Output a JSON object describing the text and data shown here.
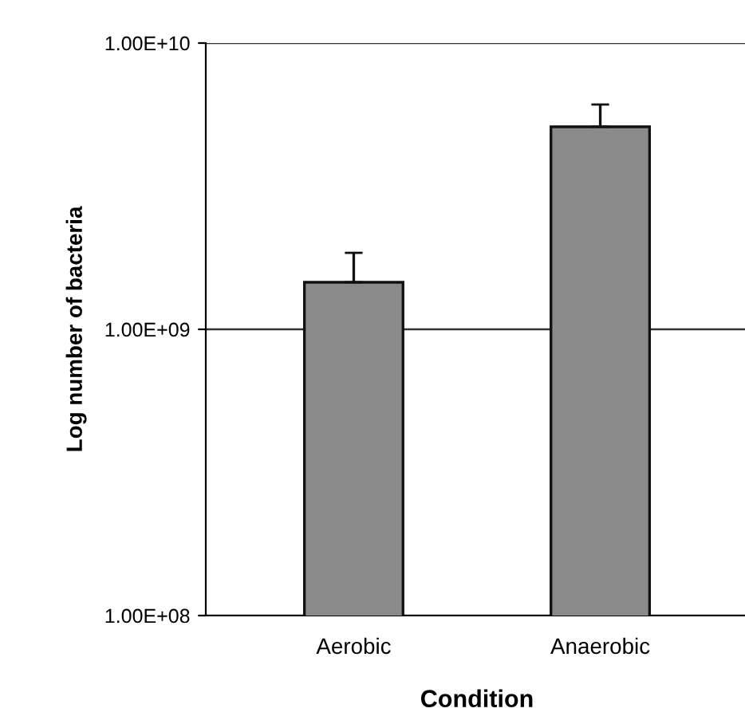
{
  "chart_data": {
    "type": "bar",
    "xlabel": "Condition",
    "ylabel": "Log number of bacteria",
    "categories": [
      "Aerobic",
      "Anaerobic"
    ],
    "values": [
      1460000000,
      5100000000
    ],
    "errors": [
      [
        1460000000,
        1850000000
      ],
      [
        5100000000,
        6100000000
      ]
    ],
    "color": "#8a8a8a",
    "log": "y",
    "ylim": [
      100000000,
      10000000000
    ],
    "yticks": [
      {
        "value": 100000000,
        "label": "1.00E+08"
      },
      {
        "value": 1000000000,
        "label": "1.00E+09"
      },
      {
        "value": 10000000000,
        "label": "1.00E+10"
      }
    ],
    "grid": "y"
  }
}
